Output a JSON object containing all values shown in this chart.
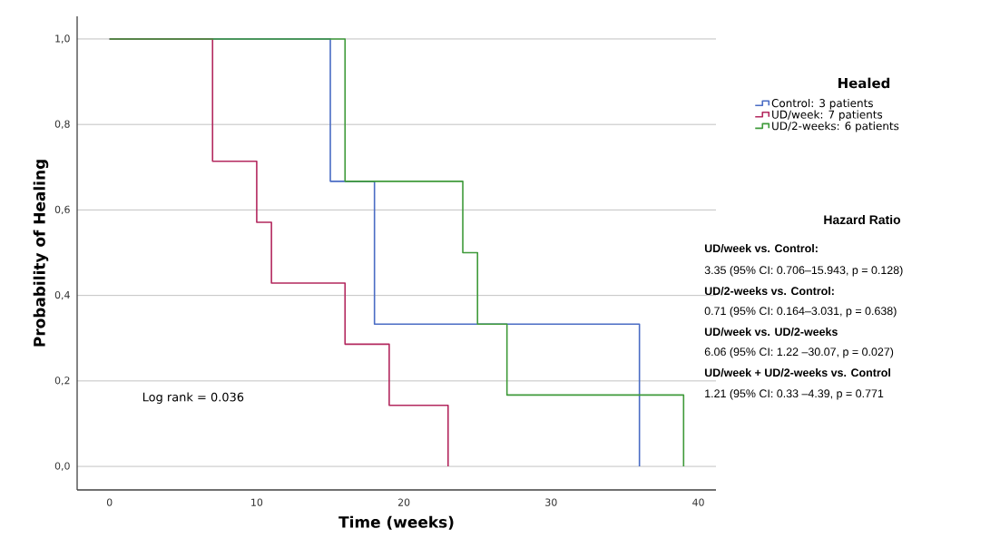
{
  "chart_data": {
    "type": "step",
    "xlabel": "Time (weeks)",
    "ylabel": "Probability of Healing",
    "legend_title": "Healed",
    "series": [
      {
        "name": "Control: 3 patients",
        "color": "#4a6cc4",
        "x": [
          0,
          15,
          18,
          36
        ],
        "values": [
          1,
          0.667,
          0.333,
          0
        ]
      },
      {
        "name": "UD/week: 7 patients",
        "color": "#b3285e",
        "x": [
          0,
          7,
          10,
          11,
          16,
          19,
          23
        ],
        "values": [
          1,
          0.714,
          0.571,
          0.429,
          0.286,
          0.143,
          0
        ]
      },
      {
        "name": "UD/2-weeks: 6 patients",
        "color": "#3f9a3a",
        "x": [
          0,
          16,
          24,
          25,
          27,
          39
        ],
        "values": [
          1,
          0.667,
          0.5,
          0.333,
          0.167,
          0
        ]
      }
    ],
    "xlim": [
      -2.2,
      41.2
    ],
    "xticks": [
      0,
      10,
      20,
      30,
      40
    ],
    "ylim": [
      -0.055,
      1.053
    ],
    "yticks": [
      {
        "value": 0,
        "label": "0,0"
      },
      {
        "value": 0.2,
        "label": "0,2"
      },
      {
        "value": 0.4,
        "label": "0,4"
      },
      {
        "value": 0.6,
        "label": "0,6"
      },
      {
        "value": 0.8,
        "label": "0,8"
      },
      {
        "value": 1,
        "label": "1,0"
      }
    ],
    "grid": "y",
    "legend": "right",
    "line_style": "solid",
    "marker": "none",
    "annotations": [
      "Log rank = 0.036",
      "Hazard Ratio",
      "UD/week vs. Control:",
      "3.35 (95% CI: 0.706–15.943, p = 0.128)",
      "UD/2-weeks vs. Control:",
      "0.71 (95% CI: 0.164–3.031, p = 0.638)",
      "UD/week vs. UD/2-weeks",
      "6.06 (95% CI: 1.22 –30.07, p = 0.027)",
      "UD/week + UD/2-weeks vs. Control",
      "1.21 (95% CI: 0.33 –4.39, p = 0.771"
    ]
  }
}
